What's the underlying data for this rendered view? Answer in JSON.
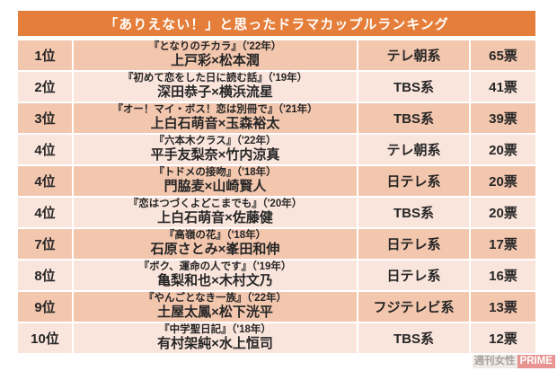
{
  "header": {
    "title": "「ありえない！」と思ったドラマカップルランキング"
  },
  "rows": [
    {
      "rank": "1位",
      "drama": "『となりのチカラ』（'22年）",
      "couple": "上戸彩×松本潤",
      "network": "テレ朝系",
      "votes": "65票"
    },
    {
      "rank": "2位",
      "drama": "『初めて恋をした日に読む話』（'19年）",
      "couple": "深田恭子×横浜流星",
      "network": "TBS系",
      "votes": "41票"
    },
    {
      "rank": "3位",
      "drama": "『オー！マイ・ボス！恋は別冊で』（'21年）",
      "couple": "上白石萌音×玉森裕太",
      "network": "TBS系",
      "votes": "39票"
    },
    {
      "rank": "4位",
      "drama": "『六本木クラス』（'22年）",
      "couple": "平手友梨奈×竹内涼真",
      "network": "テレ朝系",
      "votes": "20票"
    },
    {
      "rank": "4位",
      "drama": "『トドメの接吻』（'18年）",
      "couple": "門脇麦×山崎賢人",
      "network": "日テレ系",
      "votes": "20票"
    },
    {
      "rank": "4位",
      "drama": "『恋はつづくよどこまでも』（'20年）",
      "couple": "上白石萌音×佐藤健",
      "network": "TBS系",
      "votes": "20票"
    },
    {
      "rank": "7位",
      "drama": "『高嶺の花』（'18年）",
      "couple": "石原さとみ×峯田和伸",
      "network": "日テレ系",
      "votes": "17票"
    },
    {
      "rank": "8位",
      "drama": "『ボク、運命の人です』（'19年）",
      "couple": "亀梨和也×木村文乃",
      "network": "日テレ系",
      "votes": "16票"
    },
    {
      "rank": "9位",
      "drama": "『やんごとなき一族』（'22年）",
      "couple": "土屋太鳳×松下洸平",
      "network": "フジテレビ系",
      "votes": "13票"
    },
    {
      "rank": "10位",
      "drama": "『中学聖日記』（'18年）",
      "couple": "有村架純×水上恒司",
      "network": "TBS系",
      "votes": "12票"
    }
  ],
  "watermark": {
    "publisher": "週刊女性",
    "brand": "PRIME"
  },
  "colors": {
    "page_bg": "#ffffff",
    "header_bg": "#e57e3a",
    "header_text": "#ffffff",
    "row_dark": "#f3c6ae",
    "row_light": "#fae5dc",
    "text": "#262626",
    "watermark_pink": "#e5837e"
  },
  "chart_data": {
    "type": "table",
    "title": "「ありえない！」と思ったドラマカップルランキング",
    "columns": [
      "rank",
      "drama_and_year",
      "couple",
      "network",
      "votes"
    ],
    "rows": [
      [
        1,
        "となりのチカラ ('22年)",
        "上戸彩×松本潤",
        "テレ朝系",
        65
      ],
      [
        2,
        "初めて恋をした日に読む話 ('19年)",
        "深田恭子×横浜流星",
        "TBS系",
        41
      ],
      [
        3,
        "オー！マイ・ボス！恋は別冊で ('21年)",
        "上白石萌音×玉森裕太",
        "TBS系",
        39
      ],
      [
        4,
        "六本木クラス ('22年)",
        "平手友梨奈×竹内涼真",
        "テレ朝系",
        20
      ],
      [
        4,
        "トドメの接吻 ('18年)",
        "門脇麦×山崎賢人",
        "日テレ系",
        20
      ],
      [
        4,
        "恋はつづくよどこまでも ('20年)",
        "上白石萌音×佐藤健",
        "TBS系",
        20
      ],
      [
        7,
        "高嶺の花 ('18年)",
        "石原さとみ×峯田和伸",
        "日テレ系",
        17
      ],
      [
        8,
        "ボク、運命の人です ('19年)",
        "亀梨和也×木村文乃",
        "日テレ系",
        16
      ],
      [
        9,
        "やんごとなき一族 ('22年)",
        "土屋太鳳×松下洸平",
        "フジテレビ系",
        13
      ],
      [
        10,
        "中学聖日記 ('18年)",
        "有村架純×水上恒司",
        "TBS系",
        12
      ]
    ]
  }
}
